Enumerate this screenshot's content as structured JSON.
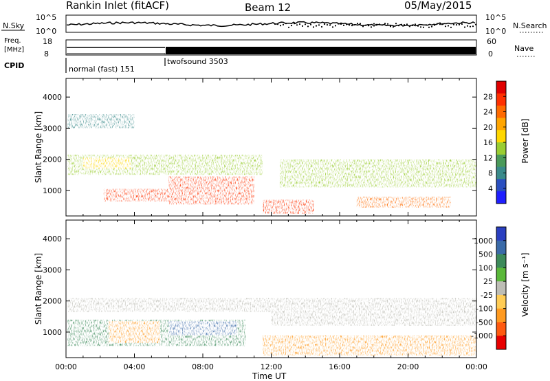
{
  "header": {
    "title": "Rankin Inlet (fitACF)",
    "beam": "Beam 12",
    "date": "05/May/2015"
  },
  "summary_panels": {
    "nsky_label": "N.Sky",
    "nsearch_label": "N.Search",
    "log_top": "10^5",
    "log_bottom": "10^0",
    "freq_label": "Freq.",
    "freq_unit": "[MHz]",
    "freq_ticks": [
      "18",
      "8"
    ],
    "nave_label": "Nave",
    "nave_ticks": [
      "60",
      "0"
    ],
    "cpid_label": "CPID",
    "cpid_segments": [
      {
        "label": "normal (fast) 151",
        "start_hour": 0,
        "end_hour": 6
      },
      {
        "label": "twofsound 3503",
        "start_hour": 6,
        "end_hour": 24
      }
    ]
  },
  "axes": {
    "x_label": "Time UT",
    "x_ticks": [
      "00:00",
      "04:00",
      "08:00",
      "12:00",
      "16:00",
      "20:00",
      "00:00"
    ],
    "y_label": "Slant Range [km]",
    "y_ticks": [
      "1000",
      "2000",
      "3000",
      "4000"
    ]
  },
  "colorbars": {
    "power": {
      "label": "Power [dB]",
      "ticks": [
        "4",
        "8",
        "12",
        "16",
        "20",
        "24",
        "28"
      ],
      "colors": [
        "#1f1fff",
        "#2a4fc0",
        "#3a8a8a",
        "#4a9a5a",
        "#9acd32",
        "#ffd700",
        "#ffa500",
        "#ff6a00",
        "#ff3000",
        "#e00000"
      ]
    },
    "velocity": {
      "label": "Velocity [m s⁻¹]",
      "ticks": [
        "1000",
        "500",
        "100",
        "25",
        "-25",
        "-100",
        "-500",
        "-1000"
      ],
      "colors": [
        "#2a3fc0",
        "#3a6aa8",
        "#3c8a5a",
        "#5ab83a",
        "#bdbdb5",
        "#ffcc55",
        "#ff9a20",
        "#ff5a10",
        "#e80000"
      ]
    }
  },
  "chart_data": [
    {
      "type": "heatmap",
      "title": "Power",
      "x_label": "Time UT",
      "y_label": "Slant Range [km]",
      "xlim": [
        0,
        24
      ],
      "ylim": [
        180,
        4600
      ],
      "color_label": "Power [dB]",
      "regions": [
        {
          "x0": 0.1,
          "x1": 6.0,
          "y0": 1500,
          "y1": 2150,
          "value": 12
        },
        {
          "x0": 1.0,
          "x1": 3.8,
          "y0": 1700,
          "y1": 2050,
          "value": 18
        },
        {
          "x0": 2.2,
          "x1": 6.0,
          "y0": 650,
          "y1": 1050,
          "value": 26
        },
        {
          "x0": 6.0,
          "x1": 11.0,
          "y0": 550,
          "y1": 1450,
          "value": 28
        },
        {
          "x0": 6.0,
          "x1": 11.5,
          "y0": 1500,
          "y1": 2150,
          "value": 14
        },
        {
          "x0": 11.5,
          "x1": 14.5,
          "y0": 250,
          "y1": 700,
          "value": 26
        },
        {
          "x0": 12.5,
          "x1": 24.0,
          "y0": 1100,
          "y1": 2000,
          "value": 12
        },
        {
          "x0": 17.0,
          "x1": 22.5,
          "y0": 450,
          "y1": 800,
          "value": 24
        },
        {
          "x0": 0.1,
          "x1": 4.0,
          "y0": 3000,
          "y1": 3450,
          "value": 8
        }
      ]
    },
    {
      "type": "heatmap",
      "title": "Velocity",
      "x_label": "Time UT",
      "y_label": "Slant Range [km]",
      "xlim": [
        0,
        24
      ],
      "ylim": [
        180,
        4600
      ],
      "color_label": "Velocity [m s⁻¹]",
      "regions": [
        {
          "x0": 0.1,
          "x1": 24.0,
          "y0": 1650,
          "y1": 2100,
          "value": 0
        },
        {
          "x0": 0.1,
          "x1": 10.5,
          "y0": 550,
          "y1": 1400,
          "value": 150
        },
        {
          "x0": 2.5,
          "x1": 5.5,
          "y0": 650,
          "y1": 1350,
          "value": -200
        },
        {
          "x0": 6.0,
          "x1": 10.0,
          "y0": 900,
          "y1": 1350,
          "value": 600
        },
        {
          "x0": 11.5,
          "x1": 24.0,
          "y0": 250,
          "y1": 900,
          "value": -300
        },
        {
          "x0": 12.0,
          "x1": 24.0,
          "y0": 1200,
          "y1": 1650,
          "value": 0
        }
      ]
    }
  ]
}
